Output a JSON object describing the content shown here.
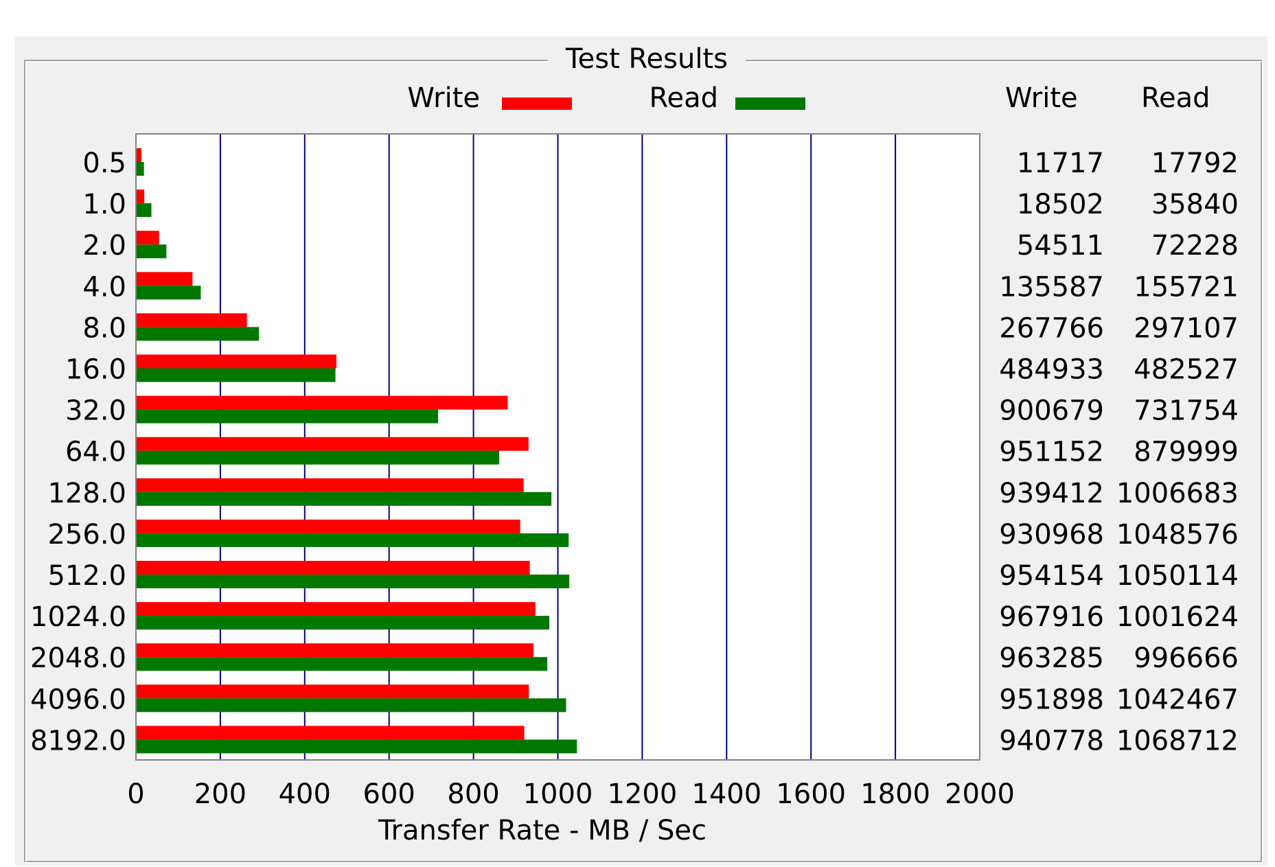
{
  "group_title": "Test Results",
  "colors": {
    "write": "#ff0000",
    "read": "#007800",
    "grid": "#000080",
    "frame": "#a0a0a0",
    "panel": "#f0f0f0"
  },
  "chart_data": {
    "type": "bar",
    "orientation": "horizontal",
    "categories": [
      "0.5",
      "1.0",
      "2.0",
      "4.0",
      "8.0",
      "16.0",
      "32.0",
      "64.0",
      "128.0",
      "256.0",
      "512.0",
      "1024.0",
      "2048.0",
      "4096.0",
      "8192.0"
    ],
    "series": [
      {
        "name": "Write",
        "values": [
          11.4,
          18.1,
          53.2,
          132.4,
          261.5,
          473.6,
          879.6,
          928.9,
          917.4,
          909.1,
          931.8,
          945.2,
          940.7,
          929.6,
          918.7
        ]
      },
      {
        "name": "Read",
        "values": [
          17.4,
          35.0,
          70.5,
          152.1,
          290.1,
          471.2,
          714.6,
          859.4,
          983.1,
          1024.0,
          1025.5,
          978.1,
          973.3,
          1018.0,
          1043.7
        ]
      }
    ],
    "xlabel": "Transfer Rate - MB / Sec",
    "xlim": [
      0,
      2000
    ],
    "xticks": [
      0,
      200,
      400,
      600,
      800,
      1000,
      1200,
      1400,
      1600,
      1800,
      2000
    ],
    "grid": true,
    "legend": {
      "placement": "top-center"
    }
  },
  "table": {
    "headers": [
      "Write",
      "Read"
    ],
    "rows": [
      [
        "11717",
        "17792"
      ],
      [
        "18502",
        "35840"
      ],
      [
        "54511",
        "72228"
      ],
      [
        "135587",
        "155721"
      ],
      [
        "267766",
        "297107"
      ],
      [
        "484933",
        "482527"
      ],
      [
        "900679",
        "731754"
      ],
      [
        "951152",
        "879999"
      ],
      [
        "939412",
        "1006683"
      ],
      [
        "930968",
        "1048576"
      ],
      [
        "954154",
        "1050114"
      ],
      [
        "967916",
        "1001624"
      ],
      [
        "963285",
        "996666"
      ],
      [
        "951898",
        "1042467"
      ],
      [
        "940778",
        "1068712"
      ]
    ]
  }
}
